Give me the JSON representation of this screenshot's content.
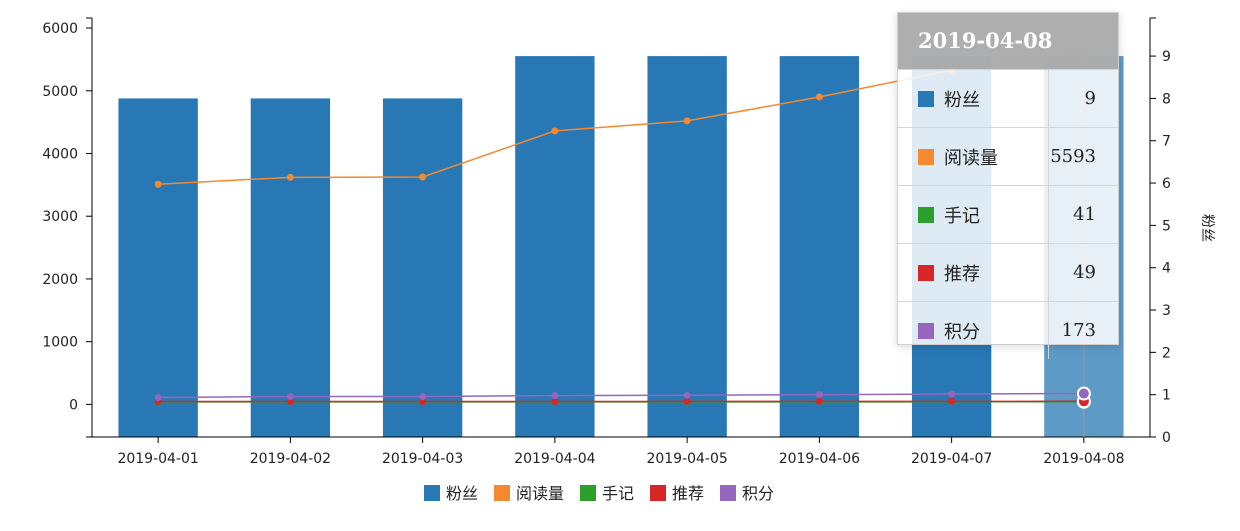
{
  "chart_data": {
    "type": "bar",
    "categories": [
      "2019-04-01",
      "2019-04-02",
      "2019-04-03",
      "2019-04-04",
      "2019-04-05",
      "2019-04-06",
      "2019-04-07",
      "2019-04-08"
    ],
    "left_axis": {
      "ticks": [
        0,
        1000,
        2000,
        3000,
        4000,
        5000,
        6000
      ],
      "range": [
        -520,
        6160
      ]
    },
    "right_axis": {
      "label": "粉丝",
      "ticks": [
        0,
        1,
        2,
        3,
        4,
        5,
        6,
        7,
        8,
        9
      ],
      "range": [
        0,
        9.9
      ]
    },
    "series": [
      {
        "name": "粉丝",
        "type": "bar",
        "axis": "right",
        "color": "#2778b4",
        "values": [
          8,
          8,
          8,
          9,
          9,
          9,
          9,
          9
        ]
      },
      {
        "name": "阅读量",
        "type": "line",
        "axis": "left",
        "color": "#f5892f",
        "values": [
          3510,
          3620,
          3625,
          4360,
          4520,
          4900,
          5330,
          5593
        ]
      },
      {
        "name": "手记",
        "type": "line",
        "axis": "left",
        "color": "#2ca02c",
        "values": [
          40,
          40,
          40,
          40,
          40,
          40,
          41,
          41
        ]
      },
      {
        "name": "推荐",
        "type": "line",
        "axis": "left",
        "color": "#d62728",
        "values": [
          45,
          45,
          45,
          46,
          47,
          47,
          48,
          49
        ]
      },
      {
        "name": "积分",
        "type": "line",
        "axis": "left",
        "color": "#9467bd",
        "values": [
          110,
          125,
          125,
          140,
          145,
          155,
          165,
          173
        ]
      }
    ],
    "legend_position": "bottom-center",
    "highlighted_category": "2019-04-08"
  },
  "tooltip": {
    "title": "2019-04-08",
    "rows": [
      {
        "name": "粉丝",
        "value": "9",
        "color": "#2778b4"
      },
      {
        "name": "阅读量",
        "value": "5593",
        "color": "#f5892f"
      },
      {
        "name": "手记",
        "value": "41",
        "color": "#2ca02c"
      },
      {
        "name": "推荐",
        "value": "49",
        "color": "#d62728"
      },
      {
        "name": "积分",
        "value": "173",
        "color": "#9467bd"
      }
    ]
  }
}
